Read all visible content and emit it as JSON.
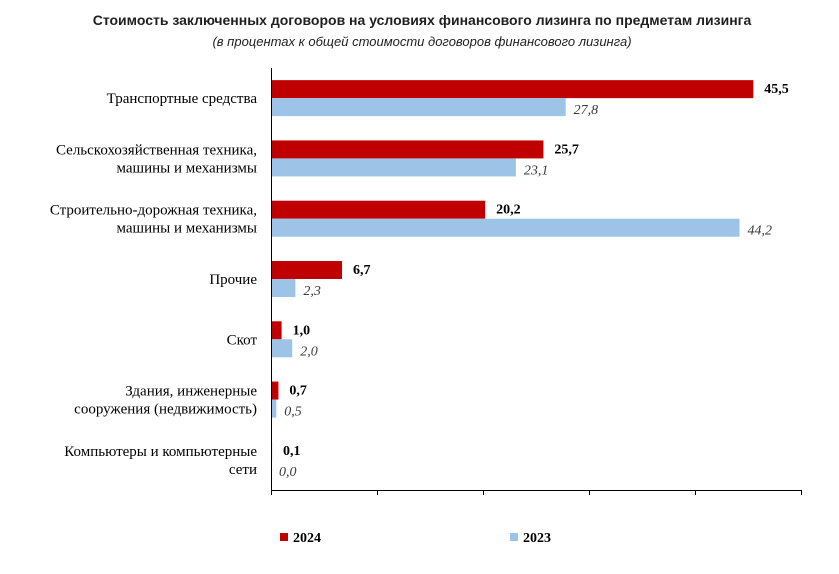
{
  "chart_data": {
    "type": "bar",
    "orientation": "horizontal",
    "title": "Стоимость заключенных договоров на условиях финансового лизинга по предметам лизинга",
    "subtitle": "(в процентах к общей стоимости договоров финансового лизинга)",
    "categories": [
      [
        "Транспортные средства"
      ],
      [
        "Сельскохозяйственная техника,",
        "машины и механизмы"
      ],
      [
        "Строительно-дорожная техника,",
        "машины и механизмы"
      ],
      [
        "Прочие"
      ],
      [
        "Скот"
      ],
      [
        "Здания, инженерные",
        "сооружения (недвижимость)"
      ],
      [
        "Компьютеры и компьютерные",
        "сети"
      ]
    ],
    "series": [
      {
        "name": "2024",
        "color": "#c00000",
        "values": [
          45.5,
          25.7,
          20.2,
          6.7,
          1.0,
          0.7,
          0.1
        ],
        "labels": [
          "45,5",
          "25,7",
          "20,2",
          "6,7",
          "1,0",
          "0,7",
          "0,1"
        ]
      },
      {
        "name": "2023",
        "color": "#9dc3e6",
        "values": [
          27.8,
          23.1,
          44.2,
          2.3,
          2.0,
          0.5,
          0.0
        ],
        "labels": [
          "27,8",
          "23,1",
          "44,2",
          "2,3",
          "2,0",
          "0,5",
          "0,0"
        ]
      }
    ],
    "xlim": [
      0,
      50
    ],
    "major_tick_step": 10,
    "grid": false,
    "legend_position": "bottom"
  }
}
